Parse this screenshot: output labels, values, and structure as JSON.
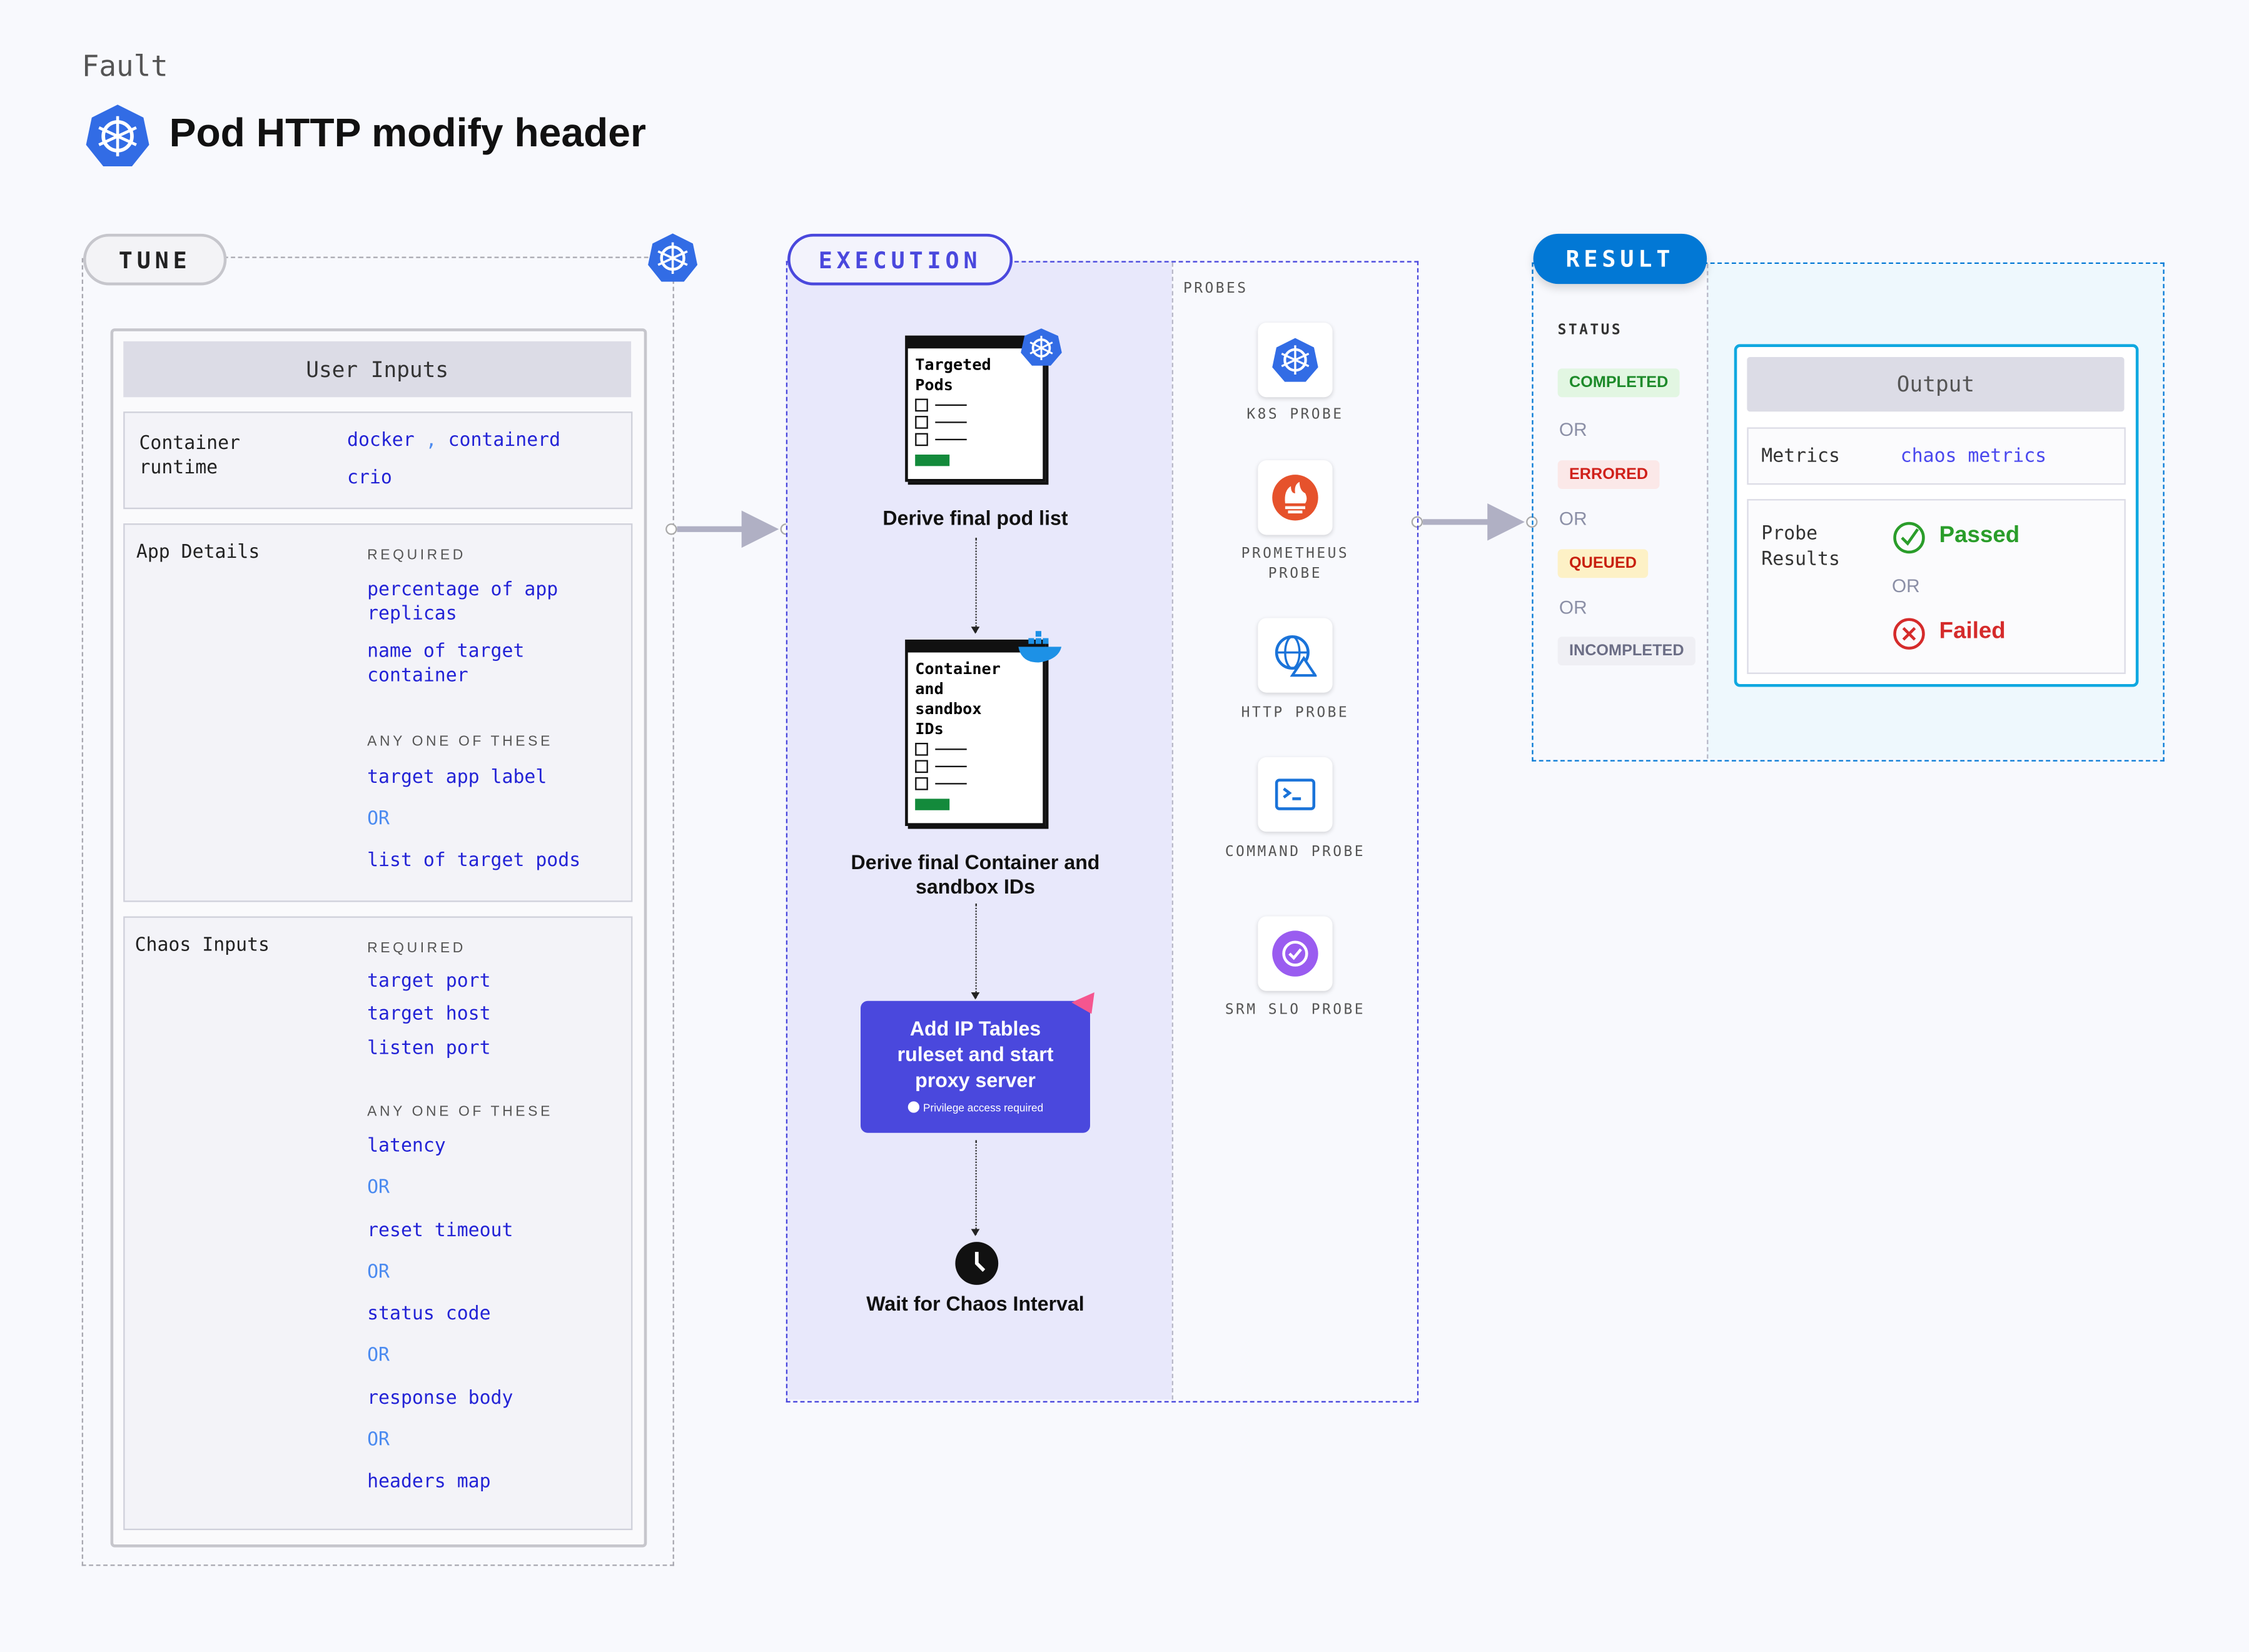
{
  "header": {
    "eyebrow": "Fault",
    "title": "Pod HTTP modify header"
  },
  "tune": {
    "label": "TUNE",
    "user_inputs_title": "User Inputs",
    "container_runtime": {
      "label": "Container runtime",
      "values": [
        "docker",
        ",",
        "containerd",
        "crio"
      ]
    },
    "app_details": {
      "label": "App Details",
      "required_label": "REQUIRED",
      "required": [
        "percentage of app replicas",
        "name of target container"
      ],
      "any_label": "ANY ONE OF THESE",
      "any": [
        "target app label",
        "list of target pods"
      ],
      "or": "OR"
    },
    "chaos_inputs": {
      "label": "Chaos Inputs",
      "required_label": "REQUIRED",
      "required": [
        "target port",
        "target host",
        "listen port"
      ],
      "any_label": "ANY ONE OF THESE",
      "any": [
        "latency",
        "reset timeout",
        "status code",
        "response body",
        "headers map"
      ],
      "or": "OR"
    }
  },
  "execution": {
    "label": "EXECUTION",
    "steps": [
      {
        "card_title": "Targeted Pods",
        "caption": "Derive final pod list"
      },
      {
        "card_title": "Container and sandbox IDs",
        "caption": "Derive final Container and sandbox IDs"
      },
      {
        "title": "Add IP Tables ruleset and start proxy server",
        "note": "Privilege access required"
      },
      {
        "caption": "Wait for Chaos Interval"
      }
    ],
    "probes_label": "PROBES",
    "probes": [
      {
        "label": "K8S PROBE",
        "icon": "kubernetes-icon"
      },
      {
        "label": "PROMETHEUS PROBE",
        "icon": "prometheus-icon"
      },
      {
        "label": "HTTP PROBE",
        "icon": "globe-warning-icon"
      },
      {
        "label": "COMMAND PROBE",
        "icon": "terminal-icon"
      },
      {
        "label": "SRM SLO PROBE",
        "icon": "slo-icon"
      }
    ]
  },
  "result": {
    "label": "RESULT",
    "status_label": "STATUS",
    "or": "OR",
    "statuses": [
      {
        "label": "COMPLETED",
        "color": "#1d8a2a",
        "bg": "#e2f6e2"
      },
      {
        "label": "ERRORED",
        "color": "#d0201a",
        "bg": "#fbe8e8"
      },
      {
        "label": "QUEUED",
        "color": "#c8200f",
        "bg": "#fdf1c6"
      },
      {
        "label": "INCOMPLETED",
        "color": "#6b6d85",
        "bg": "#efeff4"
      }
    ],
    "output": {
      "title": "Output",
      "metrics_label": "Metrics",
      "metrics_value": "chaos metrics",
      "probe_results_label": "Probe Results",
      "passed": "Passed",
      "failed": "Failed",
      "or": "OR"
    }
  },
  "colors": {
    "execution": "#4a48dd",
    "result": "#0278d5",
    "kubernetes": "#326ce5",
    "passed": "#2a9d2a",
    "failed": "#d52b2b"
  }
}
